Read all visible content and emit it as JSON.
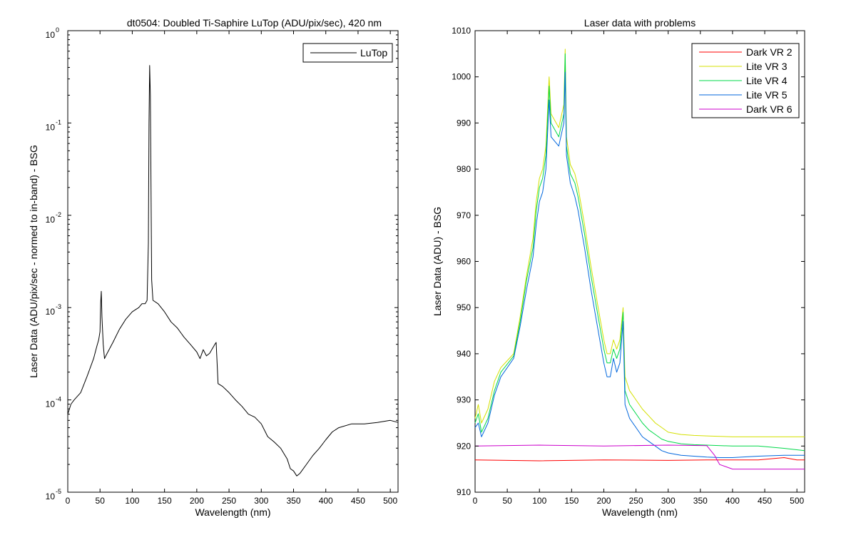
{
  "chart_data": [
    {
      "type": "line",
      "title": "dt0504: Doubled Ti-Saphire LuTop (ADU/pix/sec), 420 nm",
      "xlabel": "Wavelength (nm)",
      "ylabel": "Laser Data (ADU/pix/sec - normed to in-band) - BSG",
      "xlim": [
        0,
        512
      ],
      "ylim": [
        1e-05,
        1
      ],
      "yscale": "log",
      "x_ticks": [
        0,
        50,
        100,
        150,
        200,
        250,
        300,
        350,
        400,
        450,
        500
      ],
      "y_ticks": [
        {
          "value": 1e-05,
          "base": "10",
          "exp": "-5"
        },
        {
          "value": 0.0001,
          "base": "10",
          "exp": "-4"
        },
        {
          "value": 0.001,
          "base": "10",
          "exp": "-3"
        },
        {
          "value": 0.01,
          "base": "10",
          "exp": "-2"
        },
        {
          "value": 0.1,
          "base": "10",
          "exp": "-1"
        },
        {
          "value": 1,
          "base": "10",
          "exp": "0"
        }
      ],
      "grid": false,
      "legend_position": "top-right",
      "series": [
        {
          "name": "LuTop",
          "color": "#000000",
          "points": [
            [
              0,
              7e-05
            ],
            [
              5,
              9e-05
            ],
            [
              10,
              0.0001
            ],
            [
              20,
              0.00012
            ],
            [
              30,
              0.00018
            ],
            [
              40,
              0.00028
            ],
            [
              45,
              0.00038
            ],
            [
              48,
              0.00045
            ],
            [
              50,
              0.00055
            ],
            [
              51,
              0.0011
            ],
            [
              52,
              0.0015
            ],
            [
              53,
              0.0008
            ],
            [
              55,
              0.0004
            ],
            [
              57,
              0.00028
            ],
            [
              60,
              0.00031
            ],
            [
              70,
              0.00042
            ],
            [
              80,
              0.00058
            ],
            [
              90,
              0.00075
            ],
            [
              100,
              0.0009
            ],
            [
              110,
              0.001
            ],
            [
              115,
              0.0011
            ],
            [
              120,
              0.0011
            ],
            [
              123,
              0.0012
            ],
            [
              125,
              0.005
            ],
            [
              126,
              0.1
            ],
            [
              127,
              0.42
            ],
            [
              128,
              0.2
            ],
            [
              129,
              0.02
            ],
            [
              130,
              0.002
            ],
            [
              132,
              0.0012
            ],
            [
              140,
              0.0011
            ],
            [
              150,
              0.0009
            ],
            [
              160,
              0.0007
            ],
            [
              170,
              0.0006
            ],
            [
              180,
              0.00048
            ],
            [
              190,
              0.0004
            ],
            [
              200,
              0.00033
            ],
            [
              205,
              0.00028
            ],
            [
              210,
              0.00035
            ],
            [
              215,
              0.0003
            ],
            [
              220,
              0.00032
            ],
            [
              228,
              0.0004
            ],
            [
              230,
              0.00042
            ],
            [
              233,
              0.00015
            ],
            [
              240,
              0.00014
            ],
            [
              250,
              0.00012
            ],
            [
              260,
              0.0001
            ],
            [
              270,
              8.5e-05
            ],
            [
              280,
              7e-05
            ],
            [
              290,
              6.5e-05
            ],
            [
              300,
              5.5e-05
            ],
            [
              310,
              4e-05
            ],
            [
              320,
              3.5e-05
            ],
            [
              330,
              3e-05
            ],
            [
              340,
              2.3e-05
            ],
            [
              345,
              1.8e-05
            ],
            [
              350,
              1.7e-05
            ],
            [
              355,
              1.5e-05
            ],
            [
              360,
              1.6e-05
            ],
            [
              370,
              2e-05
            ],
            [
              380,
              2.5e-05
            ],
            [
              390,
              3e-05
            ],
            [
              400,
              3.7e-05
            ],
            [
              410,
              4.5e-05
            ],
            [
              420,
              5e-05
            ],
            [
              440,
              5.5e-05
            ],
            [
              460,
              5.5e-05
            ],
            [
              480,
              5.7e-05
            ],
            [
              500,
              6e-05
            ],
            [
              512,
              5.7e-05
            ]
          ]
        }
      ]
    },
    {
      "type": "line",
      "title": "Laser data with problems",
      "xlabel": "Wavelength (nm)",
      "ylabel": "Laser Data (ADU) - BSG",
      "xlim": [
        0,
        512
      ],
      "ylim": [
        910,
        1010
      ],
      "x_ticks": [
        0,
        50,
        100,
        150,
        200,
        250,
        300,
        350,
        400,
        450,
        500
      ],
      "y_ticks": [
        910,
        920,
        930,
        940,
        950,
        960,
        970,
        980,
        990,
        1000,
        1010
      ],
      "grid": false,
      "legend_position": "top-right",
      "series": [
        {
          "name": "Dark VR 2",
          "color": "#ff0000",
          "points": [
            [
              0,
              917
            ],
            [
              100,
              916.8
            ],
            [
              200,
              917
            ],
            [
              300,
              916.9
            ],
            [
              360,
              917
            ],
            [
              365,
              917
            ],
            [
              400,
              917
            ],
            [
              440,
              917
            ],
            [
              480,
              917.5
            ],
            [
              500,
              917
            ],
            [
              512,
              917
            ]
          ]
        },
        {
          "name": "Lite VR 3",
          "color": "#d4e000",
          "points": [
            [
              0,
              926
            ],
            [
              5,
              929
            ],
            [
              10,
              925
            ],
            [
              20,
              928
            ],
            [
              30,
              934
            ],
            [
              40,
              937
            ],
            [
              60,
              940
            ],
            [
              70,
              948
            ],
            [
              80,
              957
            ],
            [
              90,
              965
            ],
            [
              95,
              973
            ],
            [
              100,
              978
            ],
            [
              105,
              980
            ],
            [
              110,
              985
            ],
            [
              115,
              1000
            ],
            [
              118,
              992
            ],
            [
              130,
              989
            ],
            [
              138,
              994
            ],
            [
              140,
              1006
            ],
            [
              142,
              987
            ],
            [
              148,
              981
            ],
            [
              155,
              979
            ],
            [
              160,
              976
            ],
            [
              170,
              968
            ],
            [
              180,
              959
            ],
            [
              190,
              951
            ],
            [
              200,
              943
            ],
            [
              205,
              940
            ],
            [
              210,
              940
            ],
            [
              215,
              943
            ],
            [
              220,
              941
            ],
            [
              225,
              943
            ],
            [
              230,
              950
            ],
            [
              233,
              935
            ],
            [
              240,
              932
            ],
            [
              250,
              930
            ],
            [
              260,
              928
            ],
            [
              270,
              926.5
            ],
            [
              280,
              925
            ],
            [
              290,
              924
            ],
            [
              300,
              923
            ],
            [
              320,
              922.5
            ],
            [
              340,
              922.3
            ],
            [
              360,
              922.2
            ],
            [
              400,
              922
            ],
            [
              440,
              922
            ],
            [
              480,
              922
            ],
            [
              512,
              922
            ]
          ]
        },
        {
          "name": "Lite VR 4",
          "color": "#00d84a",
          "points": [
            [
              0,
              925
            ],
            [
              5,
              927
            ],
            [
              10,
              923
            ],
            [
              20,
              926
            ],
            [
              30,
              932
            ],
            [
              40,
              936
            ],
            [
              60,
              939.5
            ],
            [
              70,
              947
            ],
            [
              80,
              956
            ],
            [
              90,
              963
            ],
            [
              95,
              971
            ],
            [
              100,
              976
            ],
            [
              105,
              978
            ],
            [
              110,
              983
            ],
            [
              115,
              998
            ],
            [
              118,
              990
            ],
            [
              130,
              987
            ],
            [
              138,
              992
            ],
            [
              140,
              1005
            ],
            [
              142,
              985
            ],
            [
              148,
              979
            ],
            [
              155,
              977
            ],
            [
              160,
              974
            ],
            [
              170,
              966
            ],
            [
              180,
              957
            ],
            [
              190,
              949
            ],
            [
              200,
              941
            ],
            [
              205,
              938
            ],
            [
              210,
              938
            ],
            [
              215,
              941
            ],
            [
              220,
              939
            ],
            [
              225,
              941
            ],
            [
              230,
              949
            ],
            [
              233,
              932
            ],
            [
              240,
              929
            ],
            [
              250,
              927
            ],
            [
              260,
              925
            ],
            [
              270,
              923.5
            ],
            [
              280,
              922.5
            ],
            [
              290,
              921.5
            ],
            [
              300,
              921
            ],
            [
              320,
              920.5
            ],
            [
              340,
              920.3
            ],
            [
              360,
              920.2
            ],
            [
              400,
              920
            ],
            [
              440,
              920
            ],
            [
              480,
              919.5
            ],
            [
              512,
              919
            ]
          ]
        },
        {
          "name": "Lite VR 5",
          "color": "#0066dd",
          "points": [
            [
              0,
              924
            ],
            [
              5,
              925
            ],
            [
              10,
              922
            ],
            [
              20,
              925
            ],
            [
              30,
              931
            ],
            [
              40,
              935
            ],
            [
              60,
              939
            ],
            [
              70,
              946
            ],
            [
              80,
              954
            ],
            [
              90,
              961
            ],
            [
              95,
              968
            ],
            [
              100,
              973
            ],
            [
              105,
              975
            ],
            [
              110,
              980
            ],
            [
              115,
              995
            ],
            [
              118,
              987
            ],
            [
              130,
              985
            ],
            [
              138,
              990
            ],
            [
              140,
              1001
            ],
            [
              142,
              983
            ],
            [
              148,
              977
            ],
            [
              155,
              974
            ],
            [
              160,
              971
            ],
            [
              170,
              963
            ],
            [
              180,
              954
            ],
            [
              190,
              946
            ],
            [
              200,
              938
            ],
            [
              205,
              935
            ],
            [
              210,
              935
            ],
            [
              215,
              939
            ],
            [
              220,
              936
            ],
            [
              225,
              938
            ],
            [
              230,
              947
            ],
            [
              233,
              929
            ],
            [
              240,
              926
            ],
            [
              250,
              924
            ],
            [
              260,
              922
            ],
            [
              270,
              921
            ],
            [
              280,
              920
            ],
            [
              290,
              919
            ],
            [
              300,
              918.5
            ],
            [
              320,
              918
            ],
            [
              340,
              917.8
            ],
            [
              360,
              917.6
            ],
            [
              380,
              917.5
            ],
            [
              400,
              917.5
            ],
            [
              440,
              917.8
            ],
            [
              480,
              918
            ],
            [
              512,
              918
            ]
          ]
        },
        {
          "name": "Dark VR 6",
          "color": "#cc00cc",
          "points": [
            [
              0,
              920
            ],
            [
              100,
              920.2
            ],
            [
              200,
              920
            ],
            [
              300,
              920.2
            ],
            [
              360,
              920.1
            ],
            [
              372,
              918
            ],
            [
              380,
              916
            ],
            [
              390,
              915.5
            ],
            [
              400,
              915
            ],
            [
              420,
              915
            ],
            [
              440,
              915
            ],
            [
              460,
              915
            ],
            [
              480,
              915
            ],
            [
              500,
              915
            ],
            [
              512,
              915
            ]
          ]
        }
      ]
    }
  ]
}
